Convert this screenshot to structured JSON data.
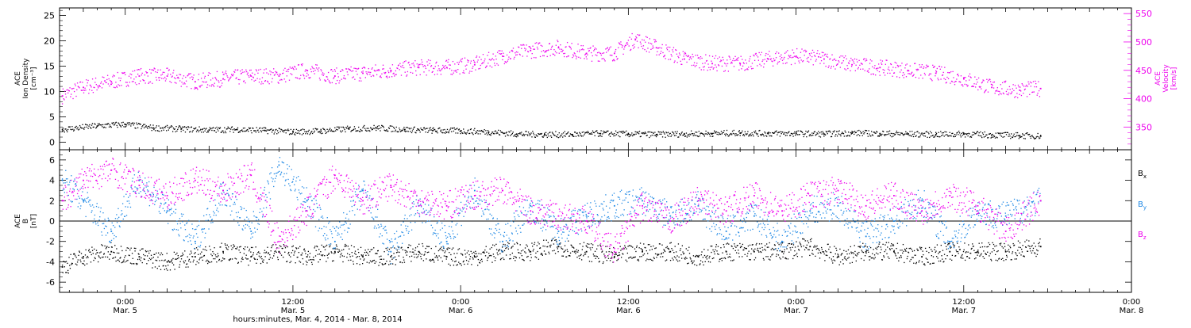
{
  "colors": {
    "axis": "#000000",
    "density": "#000000",
    "velocity": "#ee00ee",
    "bx": "#000000",
    "by": "#1e88e5",
    "bz": "#ee00ee"
  },
  "xaxis": {
    "label": "hours:minutes, Mar.  4, 2014 - Mar.  8, 2014",
    "ticks": [
      {
        "h": 24,
        "time": "0:00",
        "date": "Mar. 5"
      },
      {
        "h": 36,
        "time": "12:00",
        "date": "Mar. 5"
      },
      {
        "h": 48,
        "time": "0:00",
        "date": "Mar. 6"
      },
      {
        "h": 60,
        "time": "12:00",
        "date": "Mar. 6"
      },
      {
        "h": 72,
        "time": "0:00",
        "date": "Mar. 7"
      },
      {
        "h": 84,
        "time": "12:00",
        "date": "Mar. 7"
      },
      {
        "h": 96,
        "time": "0:00",
        "date": "Mar. 8"
      }
    ]
  },
  "chart_data": [
    {
      "type": "scatter",
      "panel": "top",
      "xlim_hours": [
        19.3,
        96
      ],
      "ylabel_left": [
        "ACE",
        "Ion Density",
        "[cm⁻³]"
      ],
      "ylabel_right": [
        "ACE",
        "Velocity",
        "[km/s]"
      ],
      "ylim_left": [
        -1.5,
        26.5
      ],
      "yticks_left": [
        0,
        5,
        10,
        15,
        20,
        25
      ],
      "ylim_right": [
        310,
        560
      ],
      "yticks_right": [
        350,
        400,
        450,
        500,
        550
      ],
      "series": [
        {
          "name": "Ion Density",
          "axis": "left",
          "color_key": "density",
          "x": [
            19.5,
            22,
            24,
            26,
            28,
            30,
            32,
            34,
            36,
            38,
            40,
            42,
            44,
            46,
            48,
            50,
            52,
            54,
            56,
            58,
            60,
            62,
            64,
            66,
            68,
            70,
            72,
            74,
            76,
            78,
            80,
            82,
            84,
            86,
            88,
            89.5
          ],
          "y": [
            2.5,
            3.2,
            3.5,
            2.8,
            2.6,
            2.4,
            2.5,
            2.3,
            2.0,
            2.2,
            2.6,
            2.8,
            2.5,
            2.3,
            2.2,
            2.0,
            1.6,
            1.5,
            1.5,
            1.7,
            1.6,
            1.5,
            1.6,
            1.7,
            1.8,
            1.7,
            1.7,
            1.6,
            1.8,
            1.7,
            1.6,
            1.5,
            1.6,
            1.4,
            1.3,
            1.2
          ]
        },
        {
          "name": "Velocity",
          "axis": "right",
          "color_key": "velocity",
          "x": [
            19.5,
            21,
            23,
            25,
            27,
            29,
            31,
            33,
            35,
            37,
            39,
            41,
            43,
            45,
            47,
            49,
            51,
            53,
            55,
            57,
            59,
            60.5,
            62,
            64,
            66,
            68,
            70,
            72,
            74,
            76,
            78,
            80,
            82,
            84,
            86,
            88,
            89.5
          ],
          "y": [
            405,
            420,
            430,
            440,
            440,
            430,
            435,
            440,
            440,
            450,
            440,
            445,
            450,
            455,
            455,
            460,
            475,
            485,
            490,
            480,
            480,
            505,
            490,
            470,
            462,
            462,
            470,
            475,
            470,
            460,
            455,
            450,
            445,
            435,
            420,
            415,
            418
          ]
        }
      ]
    },
    {
      "type": "scatter",
      "panel": "bottom",
      "xlim_hours": [
        19.3,
        96
      ],
      "ylabel_left": [
        "ACE",
        "B",
        "[nT]"
      ],
      "ylim": [
        -7,
        7
      ],
      "yticks": [
        -6,
        -4,
        -2,
        0,
        2,
        4,
        6
      ],
      "legend": [
        "Bₓ",
        "Bᵧ",
        "B_z"
      ],
      "series": [
        {
          "name": "Bx",
          "color_key": "bx",
          "x": [
            19.5,
            21,
            23,
            25,
            27,
            29,
            31,
            33,
            35,
            37,
            39,
            41,
            43,
            45,
            47,
            49,
            51,
            53,
            55,
            57,
            59,
            61,
            63,
            65,
            67,
            69,
            71,
            73,
            75,
            77,
            79,
            81,
            83,
            85,
            87,
            89.5
          ],
          "y": [
            -4.5,
            -3.5,
            -3.0,
            -3.5,
            -4.0,
            -3.5,
            -3.0,
            -3.5,
            -3.0,
            -3.5,
            -3.0,
            -3.5,
            -3.5,
            -3.0,
            -3.5,
            -3.5,
            -3.0,
            -3.0,
            -2.5,
            -3.0,
            -3.5,
            -3.0,
            -3.0,
            -3.5,
            -3.0,
            -3.0,
            -3.0,
            -2.5,
            -3.5,
            -3.0,
            -3.0,
            -3.5,
            -3.0,
            -3.0,
            -3.0,
            -2.5
          ]
        },
        {
          "name": "By",
          "color_key": "by",
          "x": [
            19.5,
            21,
            23,
            25,
            27,
            29,
            31,
            33,
            35,
            37,
            39,
            41,
            43,
            45,
            47,
            49,
            51,
            53,
            55,
            57,
            59,
            61,
            63,
            65,
            67,
            69,
            71,
            73,
            75,
            77,
            79,
            81,
            83,
            85,
            87,
            89.5
          ],
          "y": [
            4.0,
            2.0,
            -1.0,
            4.0,
            1.0,
            -2.0,
            3.0,
            -1.0,
            5.5,
            2.0,
            -2.0,
            3.0,
            -3.0,
            1.5,
            -2.0,
            3.0,
            -2.0,
            1.5,
            -1.0,
            0.5,
            1.5,
            2.0,
            0.5,
            1.5,
            -1.0,
            0.5,
            -2.0,
            1.0,
            1.5,
            -1.5,
            0.0,
            2.0,
            -2.0,
            1.0,
            0.5,
            2.0
          ]
        },
        {
          "name": "Bz",
          "color_key": "bz",
          "x": [
            19.5,
            21,
            23,
            25,
            27,
            29,
            31,
            33,
            35,
            37,
            39,
            41,
            43,
            45,
            47,
            49,
            51,
            53,
            55,
            57,
            59,
            61,
            63,
            65,
            67,
            69,
            71,
            73,
            75,
            77,
            79,
            81,
            83,
            85,
            87,
            89.5
          ],
          "y": [
            2.0,
            4.0,
            5.0,
            3.5,
            2.5,
            4.0,
            3.0,
            4.5,
            -2.0,
            1.0,
            4.5,
            2.0,
            3.5,
            2.0,
            1.5,
            2.5,
            3.0,
            1.0,
            0.5,
            0.0,
            -3.0,
            1.5,
            0.0,
            2.0,
            1.0,
            2.5,
            1.0,
            2.5,
            3.0,
            1.5,
            2.5,
            1.0,
            2.5,
            1.5,
            -1.0,
            2.0
          ]
        }
      ]
    }
  ]
}
